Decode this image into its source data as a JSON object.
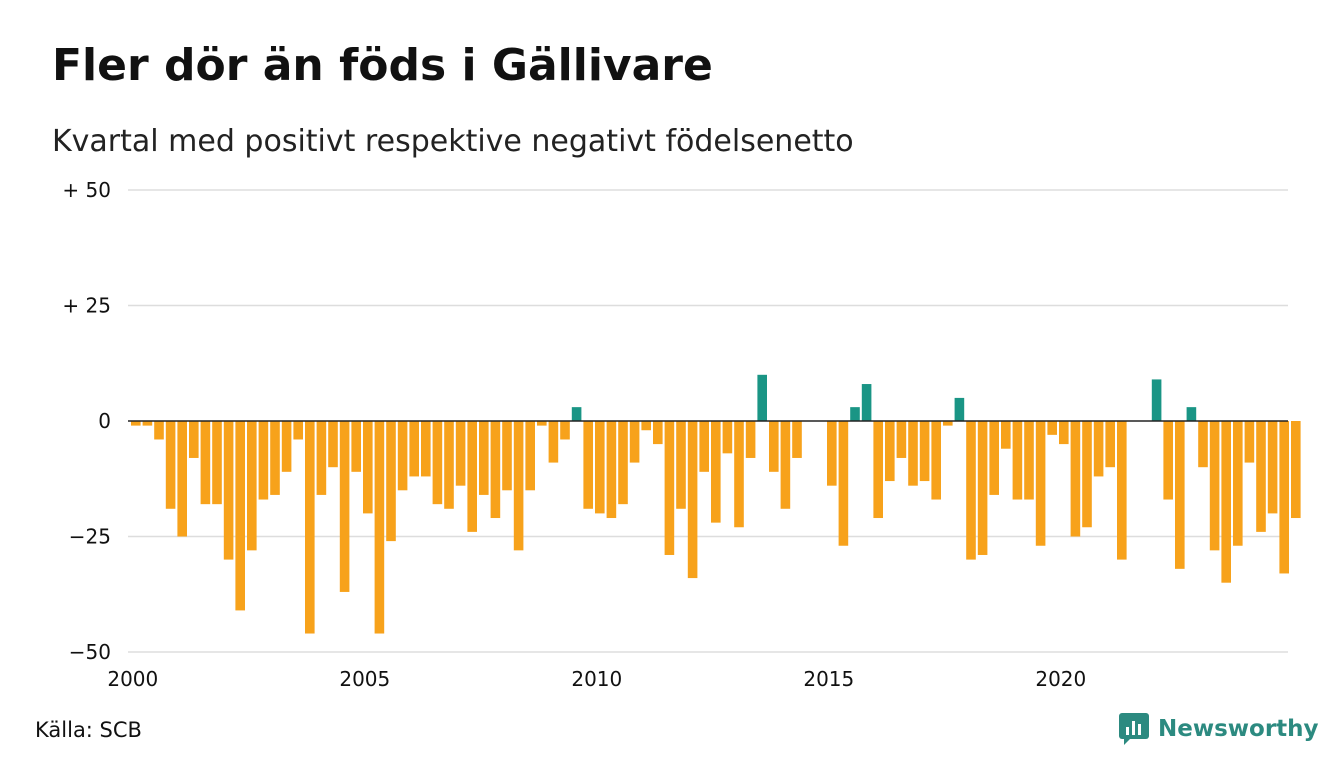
{
  "title": "Fler dör än föds i Gällivare",
  "subtitle": "Kvartal med positivt respektive negativt födelsenetto",
  "source": "Källa: SCB",
  "brand": "Newsworthy",
  "colors": {
    "positive": "#1a9585",
    "negative": "#f7a21b",
    "grid": "#dddddd",
    "zero": "#222222",
    "brand": "#2c8a80"
  },
  "chart_data": {
    "type": "bar",
    "x_start": "2000 Q1",
    "ylim": [
      -50,
      50
    ],
    "yticks": [
      -50,
      -25,
      0,
      25,
      50
    ],
    "ytick_labels": [
      "−50",
      "−25",
      "0",
      "+ 25",
      "+ 50"
    ],
    "xticks": [
      "2000",
      "2005",
      "2010",
      "2015",
      "2020"
    ],
    "grid": true,
    "values": [
      -1,
      -1,
      -4,
      -19,
      -25,
      -8,
      -18,
      -18,
      -30,
      -41,
      -28,
      -17,
      -16,
      -11,
      -4,
      -46,
      -16,
      -10,
      -37,
      -11,
      -20,
      -46,
      -26,
      -15,
      -12,
      -12,
      -18,
      -19,
      -14,
      -24,
      -16,
      -21,
      -15,
      -28,
      -15,
      -1,
      -9,
      -4,
      3,
      -19,
      -20,
      -21,
      -18,
      -9,
      -2,
      -5,
      -29,
      -19,
      -34,
      -11,
      -22,
      -7,
      -23,
      -8,
      10,
      -11,
      -19,
      -8,
      0,
      0,
      -14,
      -27,
      3,
      8,
      -21,
      -13,
      -8,
      -14,
      -13,
      -17,
      -1,
      5,
      -30,
      -29,
      -16,
      -6,
      -17,
      -17,
      -27,
      -3,
      -5,
      -25,
      -23,
      -12,
      -10,
      -30,
      0,
      0,
      9,
      -17,
      -32,
      3,
      -10,
      -28,
      -35,
      -27,
      -9,
      -24,
      -20,
      -33,
      -21
    ]
  }
}
